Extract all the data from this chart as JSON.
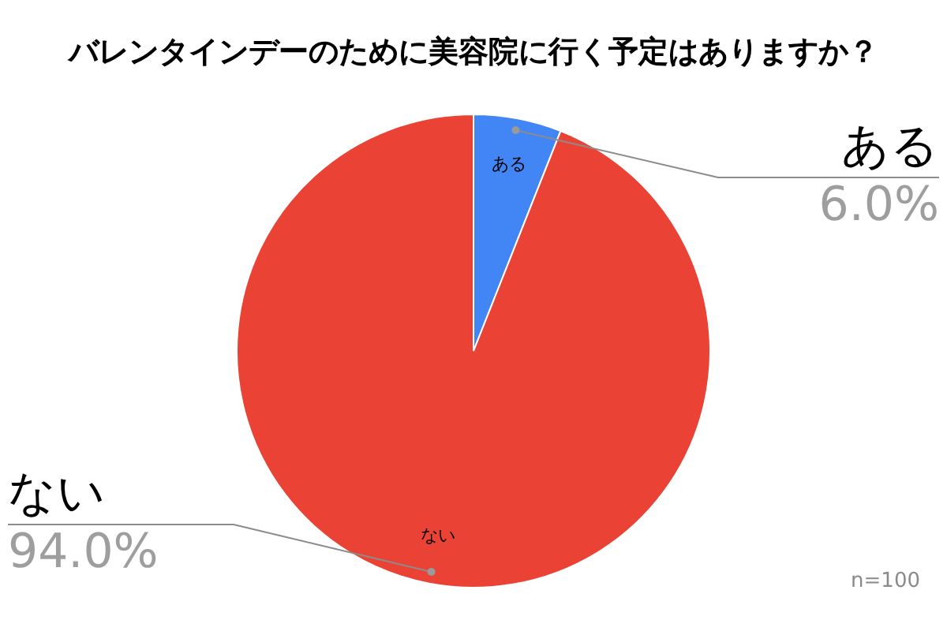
{
  "chart_data": {
    "type": "pie",
    "title": "バレンタインデーのために美容院に行く予定はありますか？",
    "categories": [
      "ある",
      "ない"
    ],
    "values": [
      6.0,
      94.0
    ],
    "colors": [
      "#4285f4",
      "#ea4335"
    ],
    "value_labels": [
      "6.0%",
      "94.0%"
    ],
    "annotations": [
      "n=100"
    ]
  }
}
